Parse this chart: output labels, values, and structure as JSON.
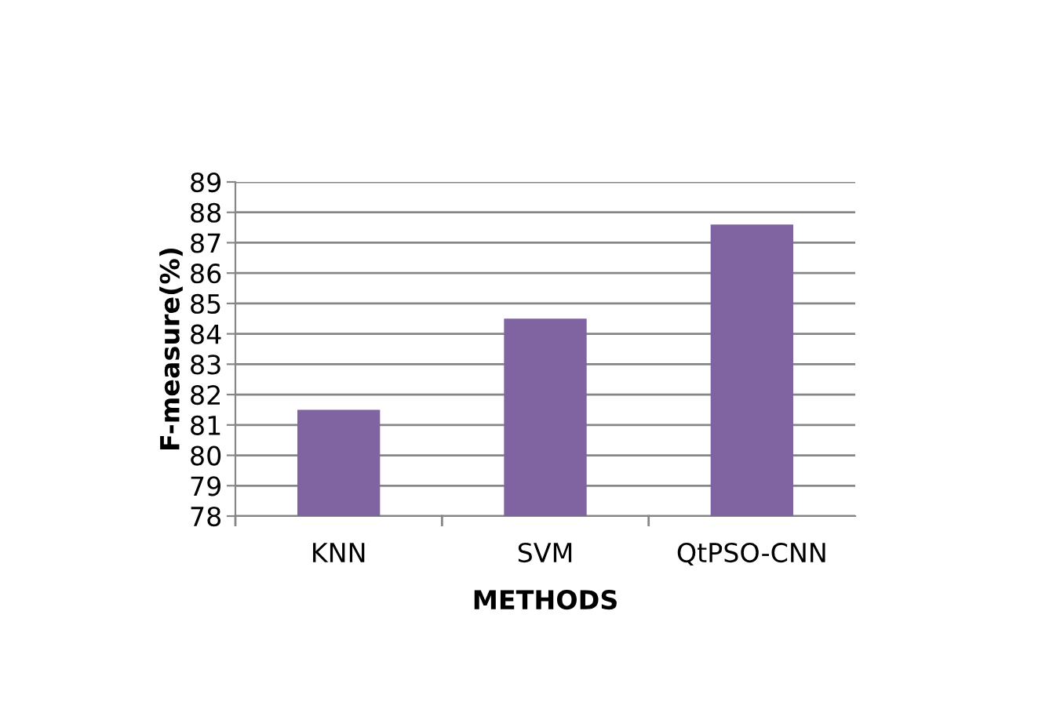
{
  "chart_data": {
    "type": "bar",
    "xlabel": "METHODS",
    "ylabel": "F-measure(%)",
    "categories": [
      "KNN",
      "SVM",
      "QtPSO-CNN"
    ],
    "values": [
      81.5,
      84.5,
      87.6
    ],
    "color": "#8064a2",
    "ylim": [
      78,
      89
    ],
    "yticks": [
      78,
      79,
      80,
      81,
      82,
      83,
      84,
      85,
      86,
      87,
      88,
      89
    ],
    "grid": "y",
    "legend": false
  }
}
